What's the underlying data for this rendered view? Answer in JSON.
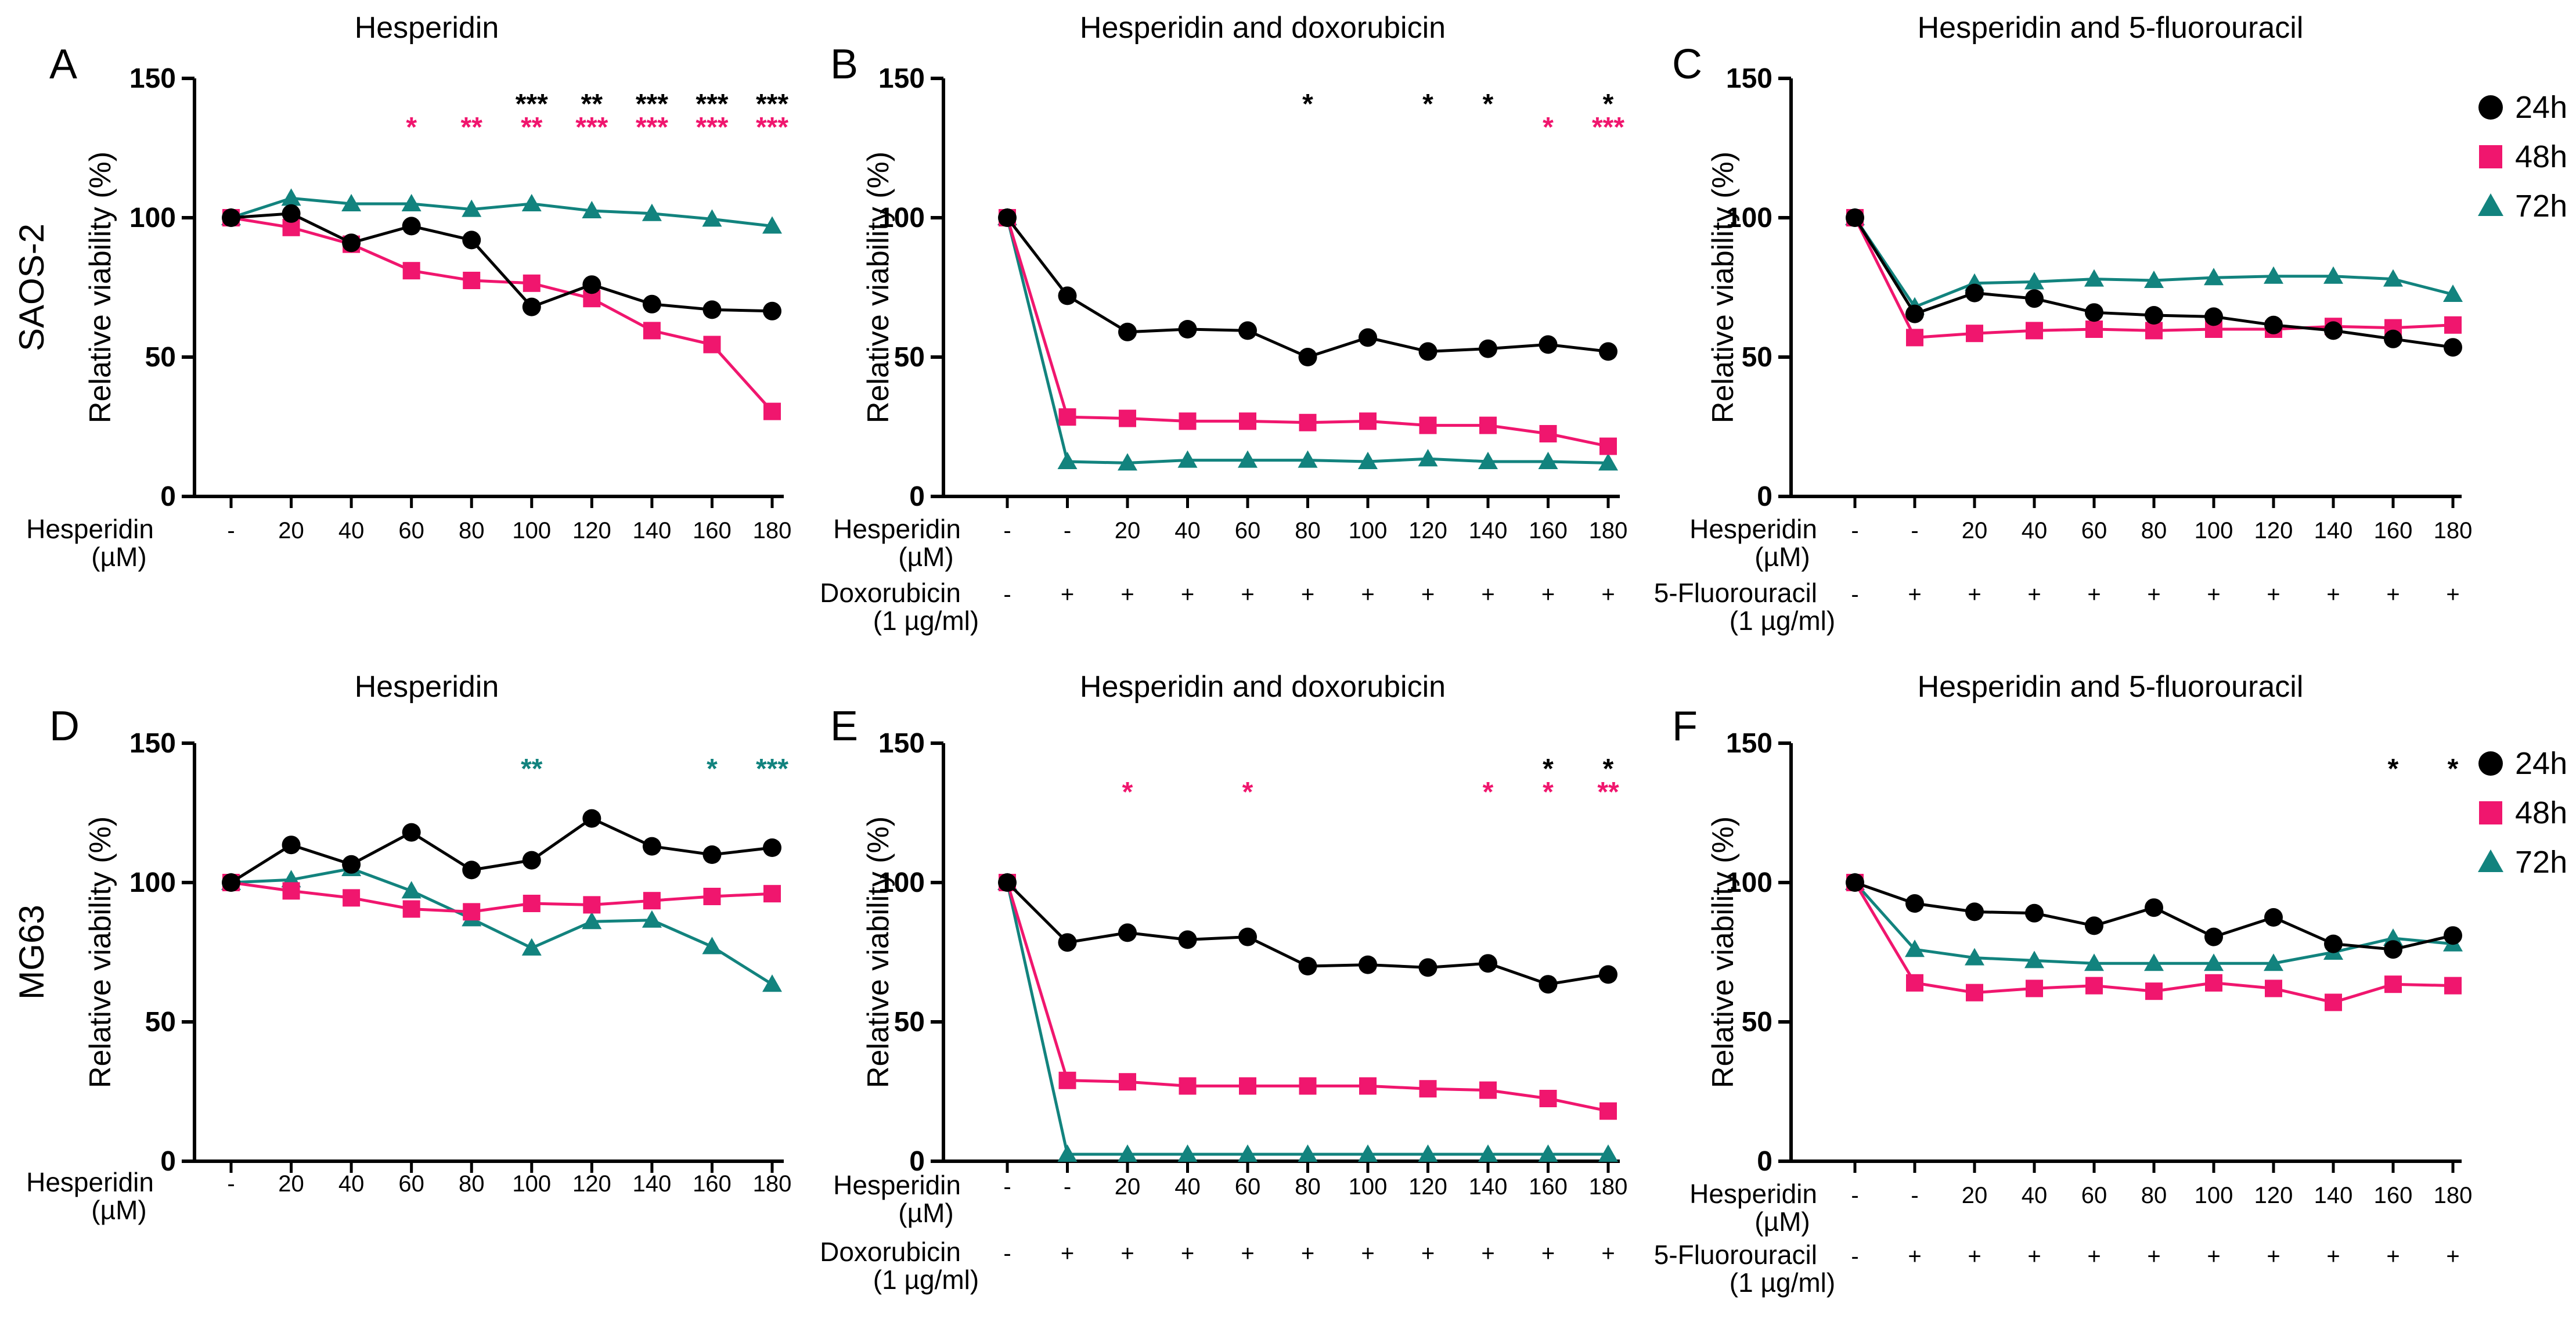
{
  "colors": {
    "h24": "#000000",
    "h48": "#f0166e",
    "h72": "#12837e",
    "axis": "#000000"
  },
  "legend": [
    {
      "key": "h24",
      "label": "24h",
      "marker": "circle"
    },
    {
      "key": "h48",
      "label": "48h",
      "marker": "square"
    },
    {
      "key": "h72",
      "label": "72h",
      "marker": "triangle"
    }
  ],
  "row_labels": [
    "SAOS-2",
    "MG63"
  ],
  "chart_data": [
    {
      "panel": "A",
      "type": "line",
      "title": "Hesperidin",
      "ylabel": "Relative viability (%)",
      "ylim": [
        0,
        150
      ],
      "yticks": [
        0,
        50,
        100,
        150
      ],
      "rows": [
        {
          "label": [
            "Hesperidin",
            "(µM)"
          ],
          "values": [
            "-",
            "20",
            "40",
            "60",
            "80",
            "100",
            "120",
            "140",
            "160",
            "180"
          ]
        }
      ],
      "series": [
        {
          "name": "24h",
          "values": [
            100,
            101.5,
            91,
            97,
            92,
            68,
            76,
            69,
            67,
            66.5
          ]
        },
        {
          "name": "48h",
          "values": [
            100,
            96.5,
            90.5,
            81,
            77.5,
            76.5,
            71,
            59.5,
            54.5,
            30.5
          ]
        },
        {
          "name": "72h",
          "values": [
            100,
            107,
            105,
            105,
            103,
            105,
            102.5,
            101.5,
            99.5,
            97
          ]
        }
      ],
      "annotations": [
        {
          "series": "24h",
          "row": 1,
          "labels": [
            "",
            "",
            "",
            "",
            "",
            "***",
            "**",
            "***",
            "***",
            "***"
          ]
        },
        {
          "series": "48h",
          "row": 2,
          "labels": [
            "",
            "",
            "",
            "*",
            "**",
            "**",
            "***",
            "***",
            "***",
            "***"
          ]
        }
      ]
    },
    {
      "panel": "B",
      "type": "line",
      "title": "Hesperidin and doxorubicin",
      "ylabel": "Relative viability (%)",
      "ylim": [
        0,
        150
      ],
      "yticks": [
        0,
        50,
        100,
        150
      ],
      "rows": [
        {
          "label": [
            "Hesperidin",
            "(µM)"
          ],
          "values": [
            "-",
            "-",
            "20",
            "40",
            "60",
            "80",
            "100",
            "120",
            "140",
            "160",
            "180"
          ]
        },
        {
          "label": [
            "Doxorubicin",
            "(1 µg/ml)"
          ],
          "values": [
            "-",
            "+",
            "+",
            "+",
            "+",
            "+",
            "+",
            "+",
            "+",
            "+",
            "+"
          ]
        }
      ],
      "series": [
        {
          "name": "24h",
          "values": [
            100,
            72,
            59,
            60,
            59.5,
            50,
            57,
            52,
            53,
            54.5,
            52
          ]
        },
        {
          "name": "48h",
          "values": [
            100,
            28.5,
            28,
            27,
            27,
            26.5,
            27,
            25.5,
            25.5,
            22.5,
            18
          ]
        },
        {
          "name": "72h",
          "values": [
            100,
            12.5,
            12,
            13,
            13,
            13,
            12.5,
            13.5,
            12.5,
            12.5,
            12
          ]
        }
      ],
      "annotations": [
        {
          "series": "24h",
          "row": 1,
          "labels": [
            "",
            "",
            "",
            "",
            "",
            "*",
            "",
            "*",
            "*",
            "",
            "*"
          ]
        },
        {
          "series": "48h",
          "row": 2,
          "labels": [
            "",
            "",
            "",
            "",
            "",
            "",
            "",
            "",
            "",
            "*",
            "***"
          ]
        }
      ]
    },
    {
      "panel": "C",
      "type": "line",
      "title": "Hesperidin and 5-fluorouracil",
      "ylabel": "Relative viability (%)",
      "ylim": [
        0,
        150
      ],
      "yticks": [
        0,
        50,
        100,
        150
      ],
      "rows": [
        {
          "label": [
            "Hesperidin",
            "(µM)"
          ],
          "values": [
            "-",
            "-",
            "20",
            "40",
            "60",
            "80",
            "100",
            "120",
            "140",
            "160",
            "180"
          ]
        },
        {
          "label": [
            "5-Fluorouracil",
            "(1 µg/ml)"
          ],
          "values": [
            "-",
            "+",
            "+",
            "+",
            "+",
            "+",
            "+",
            "+",
            "+",
            "+",
            "+"
          ]
        }
      ],
      "series": [
        {
          "name": "24h",
          "values": [
            100,
            65.5,
            73,
            71,
            66,
            65,
            64.5,
            61.5,
            59.5,
            56.5,
            53.5
          ]
        },
        {
          "name": "48h",
          "values": [
            100,
            57,
            58.5,
            59.5,
            60,
            59.5,
            60,
            60,
            61,
            60.5,
            61.5
          ]
        },
        {
          "name": "72h",
          "values": [
            100,
            68,
            76.5,
            77,
            78,
            77.5,
            78.5,
            79,
            79,
            78,
            72.5
          ]
        }
      ],
      "annotations": []
    },
    {
      "panel": "D",
      "type": "line",
      "title": "Hesperidin",
      "ylabel": "Relative viability (%)",
      "ylim": [
        0,
        150
      ],
      "yticks": [
        0,
        50,
        100,
        150
      ],
      "rows": [
        {
          "label": [
            "Hesperidin",
            "(µM)"
          ],
          "values": [
            "-",
            "20",
            "40",
            "60",
            "80",
            "100",
            "120",
            "140",
            "160",
            "180"
          ]
        }
      ],
      "series": [
        {
          "name": "24h",
          "values": [
            100,
            113.5,
            106.5,
            118,
            104.5,
            108,
            123,
            113,
            110,
            112.5
          ]
        },
        {
          "name": "48h",
          "values": [
            100,
            97,
            94.5,
            90.5,
            89.5,
            92.5,
            92,
            93.5,
            95,
            96
          ]
        },
        {
          "name": "72h",
          "values": [
            100,
            101,
            105,
            97,
            87,
            76.5,
            86,
            86.5,
            77,
            63.5
          ]
        }
      ],
      "annotations": [
        {
          "series": "72h",
          "row": 1,
          "labels": [
            "",
            "",
            "",
            "",
            "",
            "**",
            "",
            "",
            "*",
            "***"
          ]
        }
      ]
    },
    {
      "panel": "E",
      "type": "line",
      "title": "Hesperidin and doxorubicin",
      "ylabel": "Relative viability (%)",
      "ylim": [
        0,
        150
      ],
      "yticks": [
        0,
        50,
        100,
        150
      ],
      "rows": [
        {
          "label": [
            "Hesperidin",
            "(µM)"
          ],
          "values": [
            "-",
            "-",
            "20",
            "40",
            "60",
            "80",
            "100",
            "120",
            "140",
            "160",
            "180"
          ]
        },
        {
          "label": [
            "Doxorubicin",
            "(1 µg/ml)"
          ],
          "values": [
            "-",
            "+",
            "+",
            "+",
            "+",
            "+",
            "+",
            "+",
            "+",
            "+",
            "+"
          ]
        }
      ],
      "series": [
        {
          "name": "24h",
          "values": [
            100,
            78.5,
            82,
            79.5,
            80.5,
            70,
            70.5,
            69.5,
            71,
            63.5,
            67
          ]
        },
        {
          "name": "48h",
          "values": [
            100,
            29,
            28.5,
            27,
            27,
            27,
            27,
            26,
            25.5,
            22.5,
            18
          ]
        },
        {
          "name": "72h",
          "values": [
            100,
            2.5,
            2.5,
            2.5,
            2.5,
            2.5,
            2.5,
            2.5,
            2.5,
            2.5,
            2.5
          ]
        }
      ],
      "annotations": [
        {
          "series": "24h",
          "row": 1,
          "labels": [
            "",
            "",
            "",
            "",
            "",
            "",
            "",
            "",
            "",
            "*",
            "*"
          ]
        },
        {
          "series": "48h",
          "row": 2,
          "labels": [
            "",
            "",
            "*",
            "",
            "*",
            "",
            "",
            "",
            "*",
            "*",
            "**"
          ]
        }
      ]
    },
    {
      "panel": "F",
      "type": "line",
      "title": "Hesperidin and 5-fluorouracil",
      "ylabel": "Relative viability (%)",
      "ylim": [
        0,
        150
      ],
      "yticks": [
        0,
        50,
        100,
        150
      ],
      "rows": [
        {
          "label": [
            "Hesperidin",
            "(µM)"
          ],
          "values": [
            "-",
            "-",
            "20",
            "40",
            "60",
            "80",
            "100",
            "120",
            "140",
            "160",
            "180"
          ]
        },
        {
          "label": [
            "5-Fluorouracil",
            "(1 µg/ml)"
          ],
          "values": [
            "-",
            "+",
            "+",
            "+",
            "+",
            "+",
            "+",
            "+",
            "+",
            "+",
            "+"
          ]
        }
      ],
      "series": [
        {
          "name": "24h",
          "values": [
            100,
            92.5,
            89.5,
            89,
            84.5,
            91,
            80.5,
            87.5,
            78,
            76,
            81
          ]
        },
        {
          "name": "48h",
          "values": [
            100,
            64,
            60.5,
            62,
            63,
            61,
            64,
            62,
            57,
            63.5,
            63
          ]
        },
        {
          "name": "72h",
          "values": [
            100,
            76,
            73,
            72,
            71,
            71,
            71,
            71,
            75,
            80,
            78
          ]
        }
      ],
      "annotations": [
        {
          "series": "24h",
          "row": 1,
          "labels": [
            "",
            "",
            "",
            "",
            "",
            "",
            "",
            "",
            "",
            "*",
            "*"
          ]
        }
      ]
    }
  ]
}
